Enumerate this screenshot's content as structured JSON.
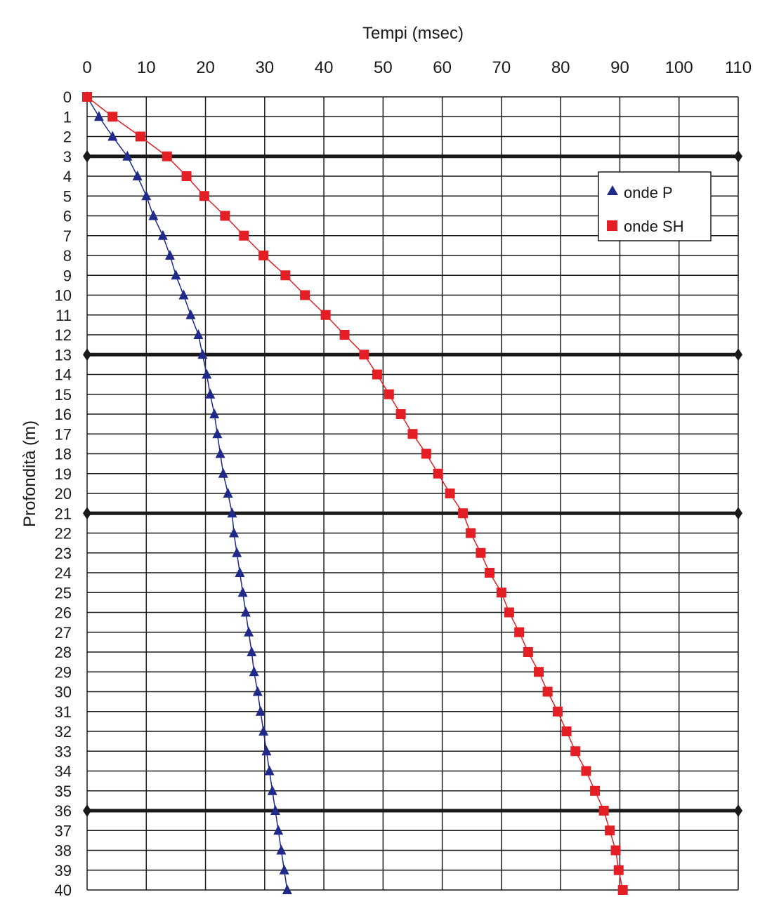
{
  "chart_data": {
    "type": "scatter",
    "xlabel": "Tempi (msec)",
    "ylabel": "Profondità (m)",
    "xlim": [
      0,
      110
    ],
    "ylim": [
      0,
      40
    ],
    "y_inverted": true,
    "x_axis_position": "top",
    "x_ticks": [
      "0",
      "10",
      "20",
      "30",
      "40",
      "50",
      "60",
      "70",
      "80",
      "90",
      "100",
      "110"
    ],
    "y_ticks": [
      "0",
      "1",
      "2",
      "3",
      "4",
      "5",
      "6",
      "7",
      "8",
      "9",
      "10",
      "11",
      "12",
      "13",
      "14",
      "15",
      "16",
      "17",
      "18",
      "19",
      "20",
      "21",
      "22",
      "23",
      "24",
      "25",
      "26",
      "27",
      "28",
      "29",
      "30",
      "31",
      "32",
      "33",
      "34",
      "35",
      "36",
      "37",
      "38",
      "39",
      "40"
    ],
    "grid": true,
    "legend_position": "top-right",
    "layer_boundaries": [
      3,
      13,
      21,
      36
    ],
    "depth": [
      0,
      1,
      2,
      3,
      4,
      5,
      6,
      7,
      8,
      9,
      10,
      11,
      12,
      13,
      14,
      15,
      16,
      17,
      18,
      19,
      20,
      21,
      22,
      23,
      24,
      25,
      26,
      27,
      28,
      29,
      30,
      31,
      32,
      33,
      34,
      35,
      36,
      37,
      38,
      39,
      40
    ],
    "series": [
      {
        "name": "onde P",
        "color": "#1f2a8a",
        "marker": "triangle",
        "x": [
          0,
          2,
          4.3,
          6.8,
          8.5,
          10,
          11.2,
          12.8,
          14,
          15,
          16.3,
          17.5,
          18.8,
          19.5,
          20.2,
          20.8,
          21.5,
          22,
          22.5,
          23,
          23.8,
          24.5,
          24.8,
          25.3,
          25.8,
          26.3,
          26.8,
          27.3,
          27.8,
          28.2,
          28.8,
          29.3,
          29.8,
          30.3,
          30.8,
          31.3,
          31.8,
          32.3,
          32.8,
          33.3,
          33.8
        ],
        "y": [
          0,
          1,
          2,
          3,
          4,
          5,
          6,
          7,
          8,
          9,
          10,
          11,
          12,
          13,
          14,
          15,
          16,
          17,
          18,
          19,
          20,
          21,
          22,
          23,
          24,
          25,
          26,
          27,
          28,
          29,
          30,
          31,
          32,
          33,
          34,
          35,
          36,
          37,
          38,
          39,
          40
        ]
      },
      {
        "name": "onde SH",
        "color": "#e31e24",
        "marker": "square",
        "x": [
          0,
          4.3,
          9,
          13.5,
          16.8,
          19.8,
          23.3,
          26.5,
          29.8,
          33.5,
          36.8,
          40.3,
          43.5,
          46.8,
          49,
          51,
          53,
          55,
          57.3,
          59.3,
          61.3,
          63.5,
          64.8,
          66.5,
          68,
          70,
          71.3,
          73,
          74.5,
          76.3,
          77.8,
          79.5,
          81,
          82.5,
          84.3,
          85.8,
          87.3,
          88.3,
          89.3,
          89.8,
          90.5
        ],
        "y": [
          0,
          1,
          2,
          3,
          4,
          5,
          6,
          7,
          8,
          9,
          10,
          11,
          12,
          13,
          14,
          15,
          16,
          17,
          18,
          19,
          20,
          21,
          22,
          23,
          24,
          25,
          26,
          27,
          28,
          29,
          30,
          31,
          32,
          33,
          34,
          35,
          36,
          37,
          38,
          39,
          40
        ]
      }
    ]
  }
}
